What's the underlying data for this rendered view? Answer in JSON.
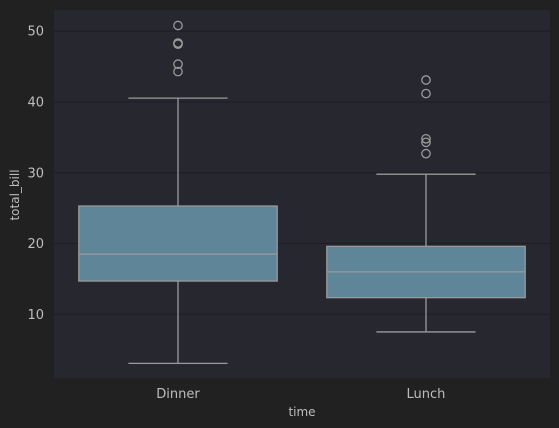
{
  "colors": {
    "figure_bg": "#212121",
    "plot_bg": "#272730",
    "grid": "#1d1d24",
    "box_fill": "#5f8599",
    "box_line": "#9a9a9a",
    "text": "#bdbdbd"
  },
  "chart_data": {
    "type": "box",
    "xlabel": "time",
    "ylabel": "total_bill",
    "categories": [
      "Dinner",
      "Lunch"
    ],
    "ylim": [
      1.0,
      53.0
    ],
    "yticks": [
      10,
      20,
      30,
      40,
      50
    ],
    "grid": true,
    "boxes": [
      {
        "category": "Dinner",
        "whisker_low": 3.07,
        "q1": 14.7,
        "median": 18.5,
        "q3": 25.3,
        "whisker_high": 40.55,
        "outliers": [
          44.3,
          45.35,
          48.17,
          48.27,
          48.33,
          50.81
        ]
      },
      {
        "category": "Lunch",
        "whisker_low": 7.51,
        "q1": 12.35,
        "median": 16.0,
        "q3": 19.6,
        "whisker_high": 29.8,
        "outliers": [
          32.7,
          34.3,
          34.8,
          41.19,
          43.11
        ]
      }
    ]
  }
}
